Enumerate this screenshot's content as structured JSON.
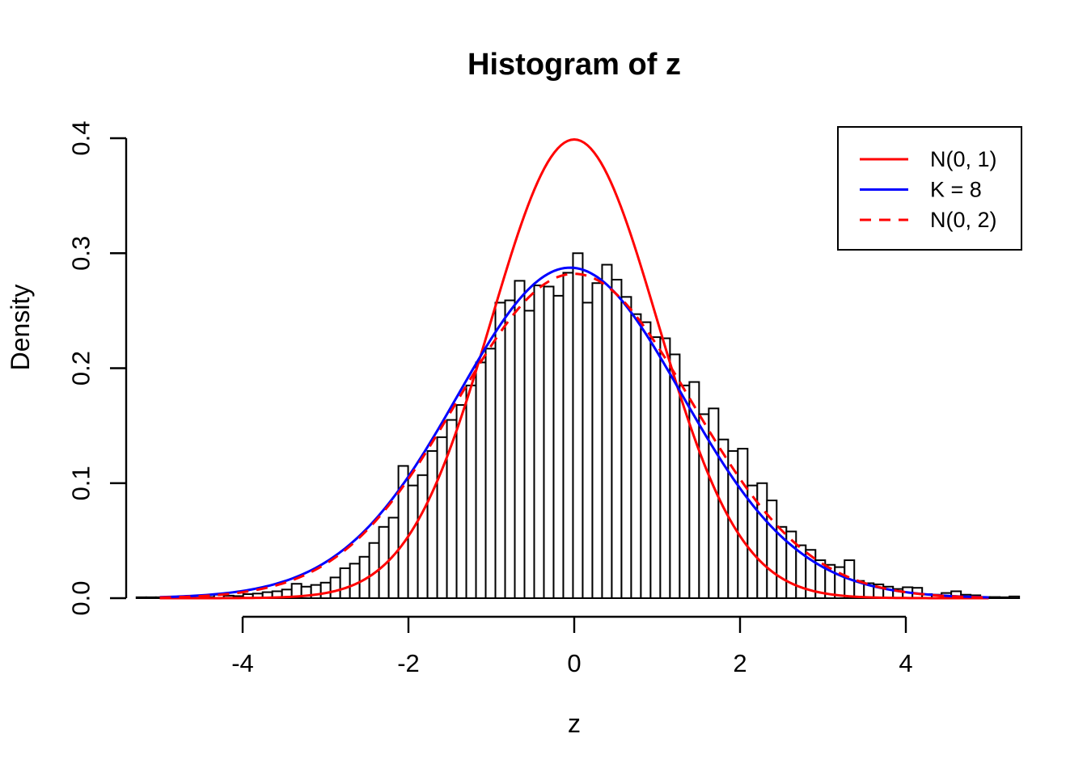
{
  "chart_data": {
    "type": "histogram",
    "title": "Histogram of z",
    "xlabel": "z",
    "ylabel": "Density",
    "xlim": [
      -5.45,
      5.45
    ],
    "ylim": [
      0.0,
      0.4
    ],
    "grid": false,
    "x_ticks": {
      "values": [
        -4,
        -2,
        0,
        2,
        4
      ],
      "labels": [
        "-4",
        "-2",
        "0",
        "2",
        "4"
      ]
    },
    "y_ticks": {
      "values": [
        0.0,
        0.1,
        0.2,
        0.3,
        0.4
      ],
      "labels": [
        "0.0",
        "0.1",
        "0.2",
        "0.3",
        "0.4"
      ]
    },
    "colors": {
      "bar_fill": "#ffffff",
      "bar_border": "#000000",
      "axis": "#000000",
      "red": "#ff0000",
      "blue": "#0000ff"
    },
    "histogram": {
      "bin_start": -5.28,
      "bin_width": 0.117,
      "densities": [
        0.0008,
        0.0008,
        0.0008,
        0.0005,
        0.0005,
        0.0008,
        0.0005,
        0.001,
        0.003,
        0.0022,
        0.0018,
        0.0035,
        0.004,
        0.0052,
        0.006,
        0.0075,
        0.0125,
        0.01,
        0.0115,
        0.0135,
        0.018,
        0.026,
        0.03,
        0.036,
        0.048,
        0.062,
        0.07,
        0.115,
        0.098,
        0.107,
        0.128,
        0.14,
        0.155,
        0.168,
        0.185,
        0.205,
        0.217,
        0.257,
        0.259,
        0.276,
        0.25,
        0.272,
        0.271,
        0.263,
        0.283,
        0.3,
        0.257,
        0.274,
        0.29,
        0.277,
        0.262,
        0.247,
        0.24,
        0.227,
        0.226,
        0.212,
        0.185,
        0.188,
        0.16,
        0.165,
        0.138,
        0.128,
        0.13,
        0.098,
        0.1,
        0.085,
        0.062,
        0.058,
        0.046,
        0.042,
        0.033,
        0.029,
        0.027,
        0.033,
        0.015,
        0.013,
        0.012,
        0.01,
        0.008,
        0.0095,
        0.009,
        0.0035,
        0.003,
        0.0045,
        0.006,
        0.003,
        0.0025,
        0.001,
        0.001,
        0.0008,
        0.0015
      ]
    },
    "curves": [
      {
        "label": "N(0, 1)",
        "color": "#ff0000",
        "style": "solid",
        "peak_density": 0.399,
        "range": [
          -5.0,
          5.0
        ],
        "components": [
          {
            "weight": 1.0,
            "mean": 0,
            "sd": 1.0
          }
        ]
      },
      {
        "label": "K = 8",
        "color": "#0000ff",
        "style": "solid",
        "peak_density": 0.287,
        "range": [
          -5.0,
          5.0
        ],
        "components": [
          {
            "weight": 0.5,
            "mean": -0.05,
            "sd": 1.25
          },
          {
            "weight": 0.5,
            "mean": -0.05,
            "sd": 1.56
          }
        ]
      },
      {
        "label": "N(0, 2)",
        "color": "#ff0000",
        "style": "dashed",
        "peak_density": 0.282,
        "range": [
          -5.0,
          5.0
        ],
        "components": [
          {
            "weight": 1.0,
            "mean": 0,
            "sd": 1.4142
          }
        ]
      }
    ],
    "legend": {
      "position": "topright",
      "entries": [
        {
          "label": "N(0, 1)",
          "color": "#ff0000",
          "style": "solid"
        },
        {
          "label": "K = 8",
          "color": "#0000ff",
          "style": "solid"
        },
        {
          "label": "N(0, 2)",
          "color": "#ff0000",
          "style": "dashed"
        }
      ]
    }
  }
}
